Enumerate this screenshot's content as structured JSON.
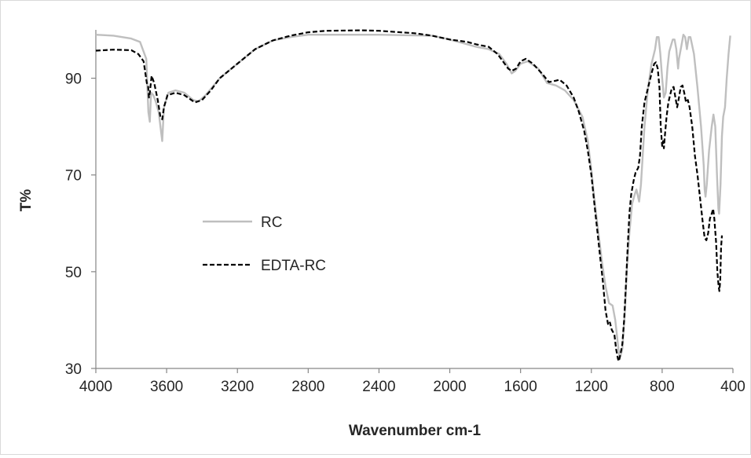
{
  "chart_data": {
    "type": "line",
    "title": "",
    "xlabel": "Wavenumber cm-1",
    "ylabel": "T%",
    "xlim": [
      4000,
      400
    ],
    "x_reversed": true,
    "ylim": [
      30,
      100
    ],
    "xticks": [
      4000,
      3600,
      3200,
      2800,
      2400,
      2000,
      1600,
      1200,
      800,
      400
    ],
    "yticks": [
      30,
      50,
      70,
      90
    ],
    "grid": false,
    "legend_position": "left-center",
    "series": [
      {
        "name": "RC",
        "color": "#bfbfbf",
        "dash": "solid",
        "points": [
          [
            4000,
            99
          ],
          [
            3900,
            98.8
          ],
          [
            3800,
            98.2
          ],
          [
            3750,
            97.5
          ],
          [
            3715,
            94
          ],
          [
            3703,
            83
          ],
          [
            3695,
            81
          ],
          [
            3688,
            87
          ],
          [
            3675,
            86.5
          ],
          [
            3660,
            85
          ],
          [
            3645,
            83
          ],
          [
            3625,
            77
          ],
          [
            3615,
            84
          ],
          [
            3590,
            87
          ],
          [
            3550,
            87.5
          ],
          [
            3500,
            87
          ],
          [
            3450,
            85.5
          ],
          [
            3420,
            85.2
          ],
          [
            3380,
            86.5
          ],
          [
            3300,
            90
          ],
          [
            3200,
            93
          ],
          [
            3100,
            96
          ],
          [
            3000,
            97.8
          ],
          [
            2900,
            98.5
          ],
          [
            2800,
            99
          ],
          [
            2700,
            99
          ],
          [
            2400,
            99
          ],
          [
            2100,
            98.8
          ],
          [
            2000,
            98
          ],
          [
            1900,
            97
          ],
          [
            1850,
            96.5
          ],
          [
            1780,
            96
          ],
          [
            1720,
            95
          ],
          [
            1680,
            93
          ],
          [
            1650,
            91
          ],
          [
            1630,
            91.5
          ],
          [
            1600,
            93
          ],
          [
            1560,
            93.5
          ],
          [
            1500,
            92
          ],
          [
            1450,
            89
          ],
          [
            1400,
            88.5
          ],
          [
            1350,
            87.5
          ],
          [
            1300,
            85.5
          ],
          [
            1250,
            82
          ],
          [
            1220,
            77
          ],
          [
            1200,
            71
          ],
          [
            1180,
            64
          ],
          [
            1160,
            58
          ],
          [
            1140,
            52
          ],
          [
            1120,
            47
          ],
          [
            1100,
            43.5
          ],
          [
            1080,
            43
          ],
          [
            1065,
            40
          ],
          [
            1050,
            35
          ],
          [
            1040,
            32
          ],
          [
            1025,
            34
          ],
          [
            1010,
            42
          ],
          [
            1000,
            50
          ],
          [
            985,
            58
          ],
          [
            970,
            64
          ],
          [
            955,
            66
          ],
          [
            945,
            67
          ],
          [
            930,
            64.5
          ],
          [
            920,
            68
          ],
          [
            900,
            80
          ],
          [
            880,
            88
          ],
          [
            860,
            93
          ],
          [
            840,
            96
          ],
          [
            830,
            98.5
          ],
          [
            820,
            98.5
          ],
          [
            810,
            95
          ],
          [
            800,
            90
          ],
          [
            790,
            86
          ],
          [
            780,
            87
          ],
          [
            770,
            92
          ],
          [
            760,
            95.5
          ],
          [
            740,
            98
          ],
          [
            730,
            98
          ],
          [
            720,
            96
          ],
          [
            710,
            92
          ],
          [
            705,
            94
          ],
          [
            690,
            97
          ],
          [
            680,
            99
          ],
          [
            670,
            98.5
          ],
          [
            660,
            96
          ],
          [
            650,
            98.5
          ],
          [
            640,
            98.5
          ],
          [
            620,
            95
          ],
          [
            600,
            88
          ],
          [
            580,
            80
          ],
          [
            565,
            72
          ],
          [
            560,
            67
          ],
          [
            555,
            65.5
          ],
          [
            548,
            68
          ],
          [
            535,
            75
          ],
          [
            520,
            80
          ],
          [
            510,
            82.5
          ],
          [
            500,
            80
          ],
          [
            490,
            70
          ],
          [
            482,
            63
          ],
          [
            478,
            62
          ],
          [
            470,
            68
          ],
          [
            462,
            78
          ],
          [
            455,
            82
          ],
          [
            445,
            84
          ],
          [
            435,
            90
          ],
          [
            425,
            95
          ],
          [
            415,
            98.8
          ]
        ]
      },
      {
        "name": "EDTA-RC",
        "color": "#000000",
        "dash": "dashed",
        "points": [
          [
            4000,
            95.7
          ],
          [
            3900,
            95.9
          ],
          [
            3800,
            95.8
          ],
          [
            3760,
            95
          ],
          [
            3730,
            93.5
          ],
          [
            3712,
            89
          ],
          [
            3705,
            88.5
          ],
          [
            3700,
            86
          ],
          [
            3695,
            87
          ],
          [
            3685,
            90.5
          ],
          [
            3670,
            89
          ],
          [
            3650,
            85.5
          ],
          [
            3635,
            82
          ],
          [
            3625,
            81.5
          ],
          [
            3615,
            84
          ],
          [
            3595,
            86.5
          ],
          [
            3550,
            87
          ],
          [
            3500,
            86.5
          ],
          [
            3460,
            85.5
          ],
          [
            3440,
            85
          ],
          [
            3400,
            85.5
          ],
          [
            3350,
            87.5
          ],
          [
            3300,
            90
          ],
          [
            3200,
            93
          ],
          [
            3100,
            96
          ],
          [
            3000,
            97.8
          ],
          [
            2900,
            98.8
          ],
          [
            2800,
            99.5
          ],
          [
            2700,
            99.8
          ],
          [
            2500,
            99.9
          ],
          [
            2400,
            99.8
          ],
          [
            2200,
            99.3
          ],
          [
            2100,
            98.8
          ],
          [
            2000,
            98
          ],
          [
            1900,
            97.5
          ],
          [
            1850,
            97
          ],
          [
            1780,
            96.5
          ],
          [
            1730,
            95
          ],
          [
            1700,
            93.5
          ],
          [
            1670,
            92
          ],
          [
            1650,
            91.5
          ],
          [
            1625,
            92
          ],
          [
            1600,
            93.5
          ],
          [
            1570,
            94
          ],
          [
            1530,
            93
          ],
          [
            1480,
            91
          ],
          [
            1440,
            89.2
          ],
          [
            1400,
            89.5
          ],
          [
            1380,
            89.7
          ],
          [
            1340,
            88.5
          ],
          [
            1300,
            86
          ],
          [
            1270,
            83
          ],
          [
            1240,
            79
          ],
          [
            1220,
            75
          ],
          [
            1200,
            70
          ],
          [
            1180,
            63
          ],
          [
            1165,
            58
          ],
          [
            1150,
            53
          ],
          [
            1135,
            48
          ],
          [
            1120,
            42
          ],
          [
            1105,
            39
          ],
          [
            1095,
            39.5
          ],
          [
            1085,
            38
          ],
          [
            1070,
            37
          ],
          [
            1060,
            34
          ],
          [
            1050,
            32
          ],
          [
            1045,
            31.5
          ],
          [
            1035,
            33
          ],
          [
            1025,
            35
          ],
          [
            1015,
            40
          ],
          [
            1005,
            47
          ],
          [
            995,
            55
          ],
          [
            985,
            62
          ],
          [
            975,
            66
          ],
          [
            960,
            69
          ],
          [
            950,
            70.5
          ],
          [
            935,
            71.5
          ],
          [
            925,
            74
          ],
          [
            915,
            80
          ],
          [
            900,
            85
          ],
          [
            880,
            88
          ],
          [
            860,
            91
          ],
          [
            845,
            93
          ],
          [
            835,
            93.3
          ],
          [
            825,
            92
          ],
          [
            815,
            88
          ],
          [
            808,
            80
          ],
          [
            800,
            76
          ],
          [
            795,
            77
          ],
          [
            790,
            75.5
          ],
          [
            785,
            78
          ],
          [
            775,
            82
          ],
          [
            765,
            85
          ],
          [
            755,
            86.5
          ],
          [
            745,
            88
          ],
          [
            735,
            88.2
          ],
          [
            725,
            86
          ],
          [
            715,
            84
          ],
          [
            705,
            86
          ],
          [
            695,
            88.2
          ],
          [
            685,
            88.5
          ],
          [
            675,
            87
          ],
          [
            665,
            85
          ],
          [
            655,
            85.5
          ],
          [
            645,
            84
          ],
          [
            630,
            80
          ],
          [
            615,
            74
          ],
          [
            600,
            70
          ],
          [
            585,
            65
          ],
          [
            570,
            60
          ],
          [
            560,
            57
          ],
          [
            550,
            56.5
          ],
          [
            540,
            58
          ],
          [
            530,
            61
          ],
          [
            520,
            62
          ],
          [
            512,
            63
          ],
          [
            505,
            61
          ],
          [
            495,
            56
          ],
          [
            488,
            50
          ],
          [
            482,
            47.5
          ],
          [
            477,
            46
          ],
          [
            472,
            48
          ],
          [
            467,
            55
          ],
          [
            462,
            57.5
          ]
        ]
      }
    ]
  }
}
